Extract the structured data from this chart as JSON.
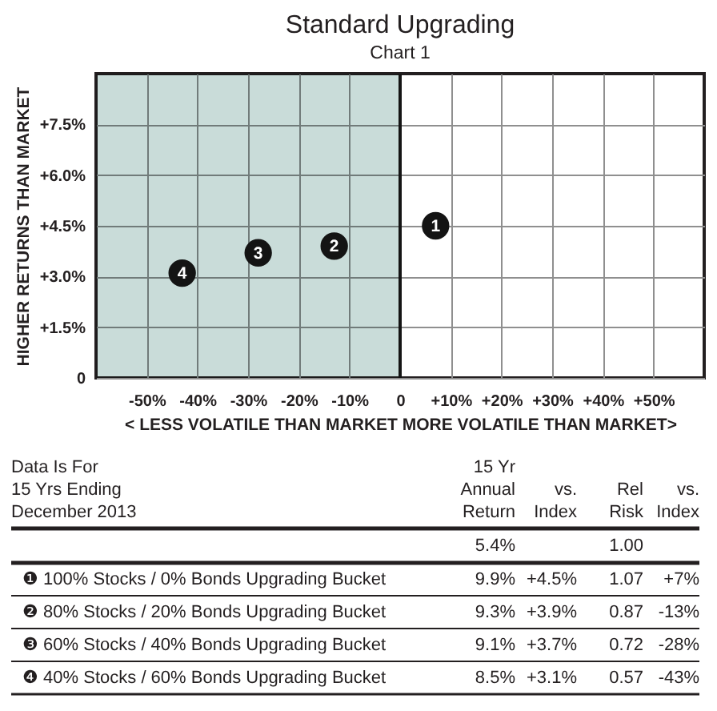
{
  "chart_data": [
    {
      "type": "scatter",
      "title": "Standard Upgrading",
      "subtitle": "Chart 1",
      "xlabel": "< LESS VOLATILE THAN MARKET MORE VOLATILE THAN MARKET>",
      "ylabel": "HIGHER RETURNS THAN MARKET",
      "x": [
        7,
        -13,
        -28,
        -43
      ],
      "values": [
        4.5,
        3.9,
        3.7,
        3.1
      ],
      "color": "#141414",
      "marker": "circle",
      "xlim": [
        -60,
        60
      ],
      "xticks": [
        {
          "value": -50,
          "label": "-50%"
        },
        {
          "value": -40,
          "label": "-40%"
        },
        {
          "value": -30,
          "label": "-30%"
        },
        {
          "value": -20,
          "label": "-20%"
        },
        {
          "value": -10,
          "label": "-10%"
        },
        0,
        {
          "value": 10,
          "label": "+10%"
        },
        {
          "value": 20,
          "label": "+20%"
        },
        {
          "value": 30,
          "label": "+30%"
        },
        {
          "value": 40,
          "label": "+40%"
        },
        {
          "value": 50,
          "label": "+50%"
        }
      ],
      "ylim": [
        0,
        9
      ],
      "yticks": [
        0,
        {
          "value": 1.5,
          "label": "+1.5%"
        },
        {
          "value": 3,
          "label": "+3.0%"
        },
        {
          "value": 4.5,
          "label": "+4.5%"
        },
        {
          "value": 6,
          "label": "+6.0%"
        },
        {
          "value": 7.5,
          "label": "+7.5%"
        }
      ],
      "grid": true,
      "bands": [
        {
          "axis": "x",
          "from": -60,
          "to": 0,
          "color": "#c9dcd9"
        }
      ],
      "ref_lines": [
        {
          "axis": "x",
          "value": 0,
          "color": "#141414"
        }
      ],
      "annotations": [
        {
          "text": "1",
          "x": 7,
          "y": 4.5
        },
        {
          "text": "2",
          "x": -13,
          "y": 3.9
        },
        {
          "text": "3",
          "x": -28,
          "y": 3.7
        },
        {
          "text": "4",
          "x": -43,
          "y": 3.1
        }
      ]
    },
    {
      "type": "other",
      "title": "Data Is For\n15 Yrs Ending\nDecember 2013",
      "categories": [
        "15 Yr\nAnnual\nReturn",
        "vs.\nIndex",
        "Rel\nRisk",
        "vs.\nIndex"
      ],
      "series": [
        {
          "values": [
            5.4,
            null,
            1.0,
            null
          ],
          "value_labels": [
            "5.4%",
            null,
            "1.00",
            null
          ]
        },
        {
          "name": "❶ 100% Stocks / 0% Bonds Upgrading Bucket",
          "values": [
            9.9,
            4.5,
            1.07,
            7
          ],
          "value_labels": [
            "9.9%",
            "+4.5%",
            "1.07",
            "+7%"
          ]
        },
        {
          "name": "❷ 80% Stocks / 20% Bonds Upgrading Bucket",
          "values": [
            9.3,
            3.9,
            0.87,
            -13
          ],
          "value_labels": [
            "9.3%",
            "+3.9%",
            "0.87",
            "-13%"
          ]
        },
        {
          "name": "❸ 60% Stocks / 40% Bonds Upgrading Bucket",
          "values": [
            9.1,
            3.7,
            0.72,
            -28
          ],
          "value_labels": [
            "9.1%",
            "+3.7%",
            "0.72",
            "-28%"
          ]
        },
        {
          "name": "❹ 40% Stocks / 60% Bonds Upgrading Bucket",
          "values": [
            8.5,
            3.1,
            0.57,
            -43
          ],
          "value_labels": [
            "8.5%",
            "+3.1%",
            "0.57",
            "-43%"
          ]
        }
      ]
    }
  ]
}
